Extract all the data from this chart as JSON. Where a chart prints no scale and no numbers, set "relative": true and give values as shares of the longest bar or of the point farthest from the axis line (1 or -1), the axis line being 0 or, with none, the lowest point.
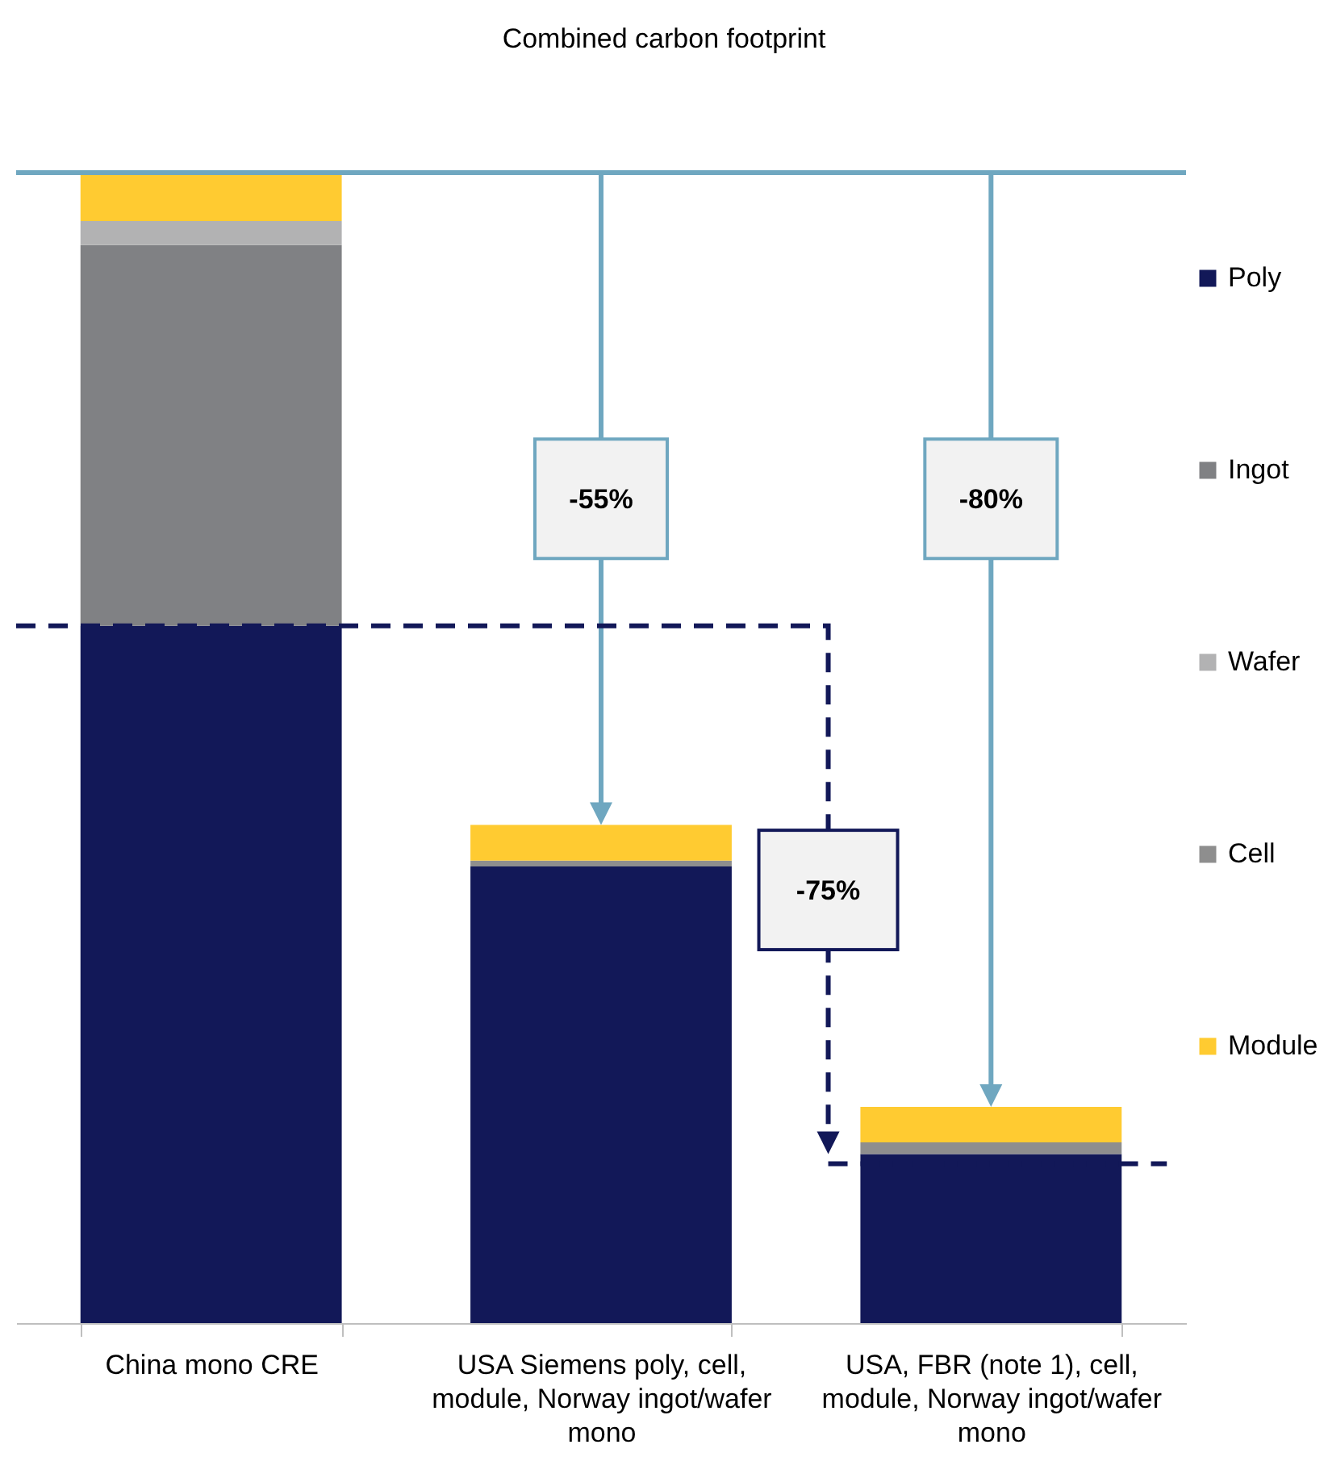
{
  "chart_data": {
    "type": "bar",
    "title": "Combined carbon footprint",
    "relative": true,
    "stacked": true,
    "legend": "right",
    "categories": [
      "China mono CRE",
      "USA Siemens poly, cell, module, Norway ingot/wafer mono",
      "USA, FBR (note 1), cell, module, Norway ingot/wafer mono"
    ],
    "series": [
      {
        "name": "Poly",
        "color": "#121858",
        "values": [
          0.606,
          0.397,
          0.147
        ]
      },
      {
        "name": "Ingot",
        "color": "#808184",
        "values": [
          0.331,
          null,
          null
        ]
      },
      {
        "name": "Wafer",
        "color": "#b2b2b3",
        "values": [
          0.021,
          null,
          null
        ]
      },
      {
        "name": "Cell",
        "color": "#8e8e8e",
        "values": [
          null,
          0.005,
          0.01
        ]
      },
      {
        "name": "Module",
        "color": "#ffcb31",
        "values": [
          0.042,
          0.031,
          0.031
        ]
      }
    ],
    "ref_lines": [
      {
        "axis": "y",
        "value": 1,
        "color": "#6fa7c0"
      }
    ],
    "annotations": [
      "-55%",
      "-80%",
      "-75%"
    ]
  }
}
